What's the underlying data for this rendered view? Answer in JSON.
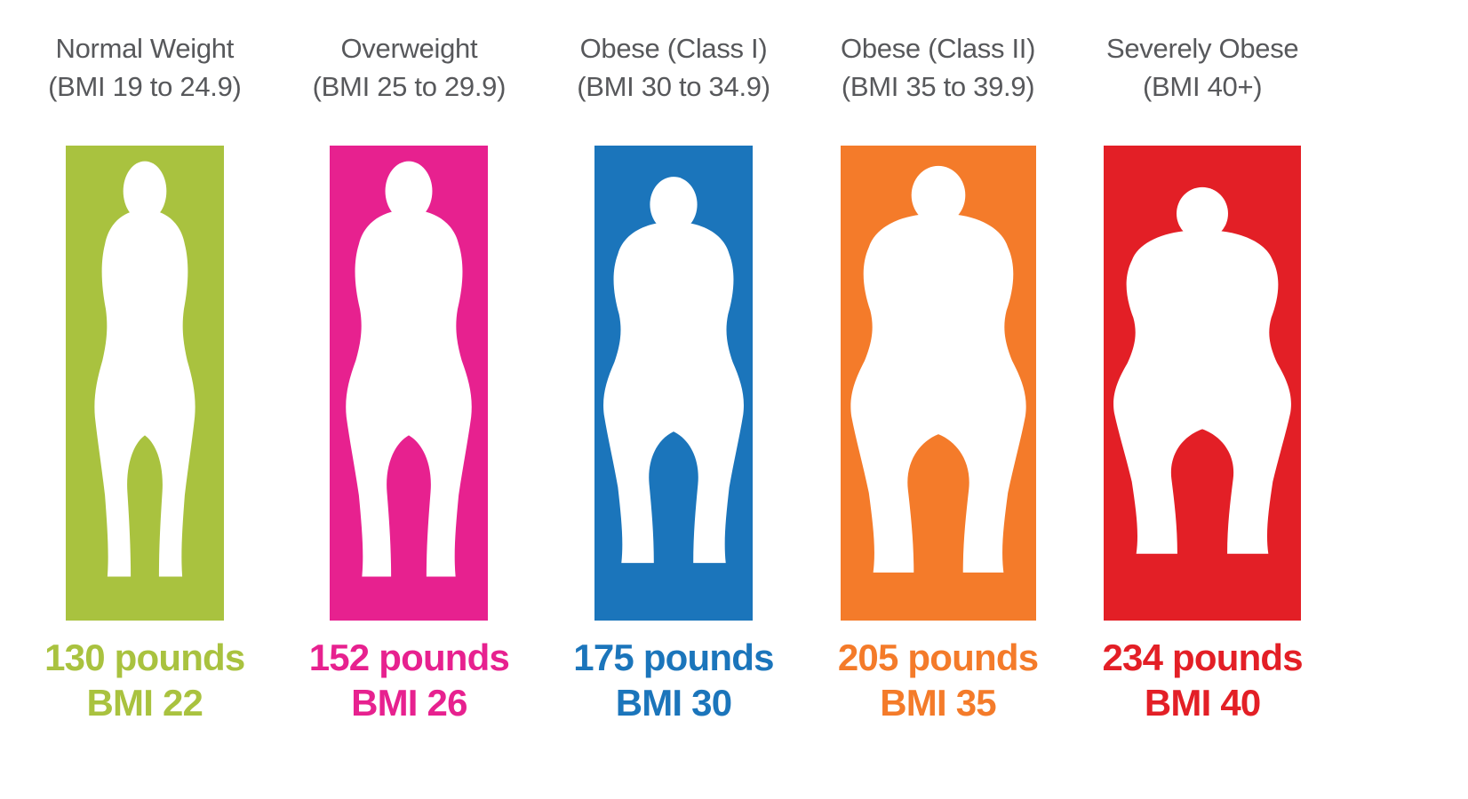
{
  "colors": {
    "heading_text": "#57585b",
    "background": "#ffffff",
    "silhouette": "#ffffff"
  },
  "categories": [
    {
      "name": "Normal Weight",
      "range": "(BMI 19 to 24.9)",
      "weight": "130 pounds",
      "bmi": "BMI 22",
      "color": "#a9c23f",
      "figure_scale": 1.0
    },
    {
      "name": "Overweight",
      "range": "(BMI 25 to 29.9)",
      "weight": "152 pounds",
      "bmi": "BMI 26",
      "color": "#e7218f",
      "figure_scale": 1.25
    },
    {
      "name": "Obese (Class I)",
      "range": "(BMI 30 to 34.9)",
      "weight": "175 pounds",
      "bmi": "BMI 30",
      "color": "#1b75bb",
      "figure_scale": 1.5
    },
    {
      "name": "Obese (Class II)",
      "range": "(BMI 35 to 39.9)",
      "weight": "205 pounds",
      "bmi": "BMI 35",
      "color": "#f47b2a",
      "figure_scale": 1.78
    },
    {
      "name": "Severely Obese",
      "range": "(BMI 40+)",
      "weight": "234 pounds",
      "bmi": "BMI 40",
      "color": "#e31f26",
      "figure_scale": 2.0
    }
  ]
}
